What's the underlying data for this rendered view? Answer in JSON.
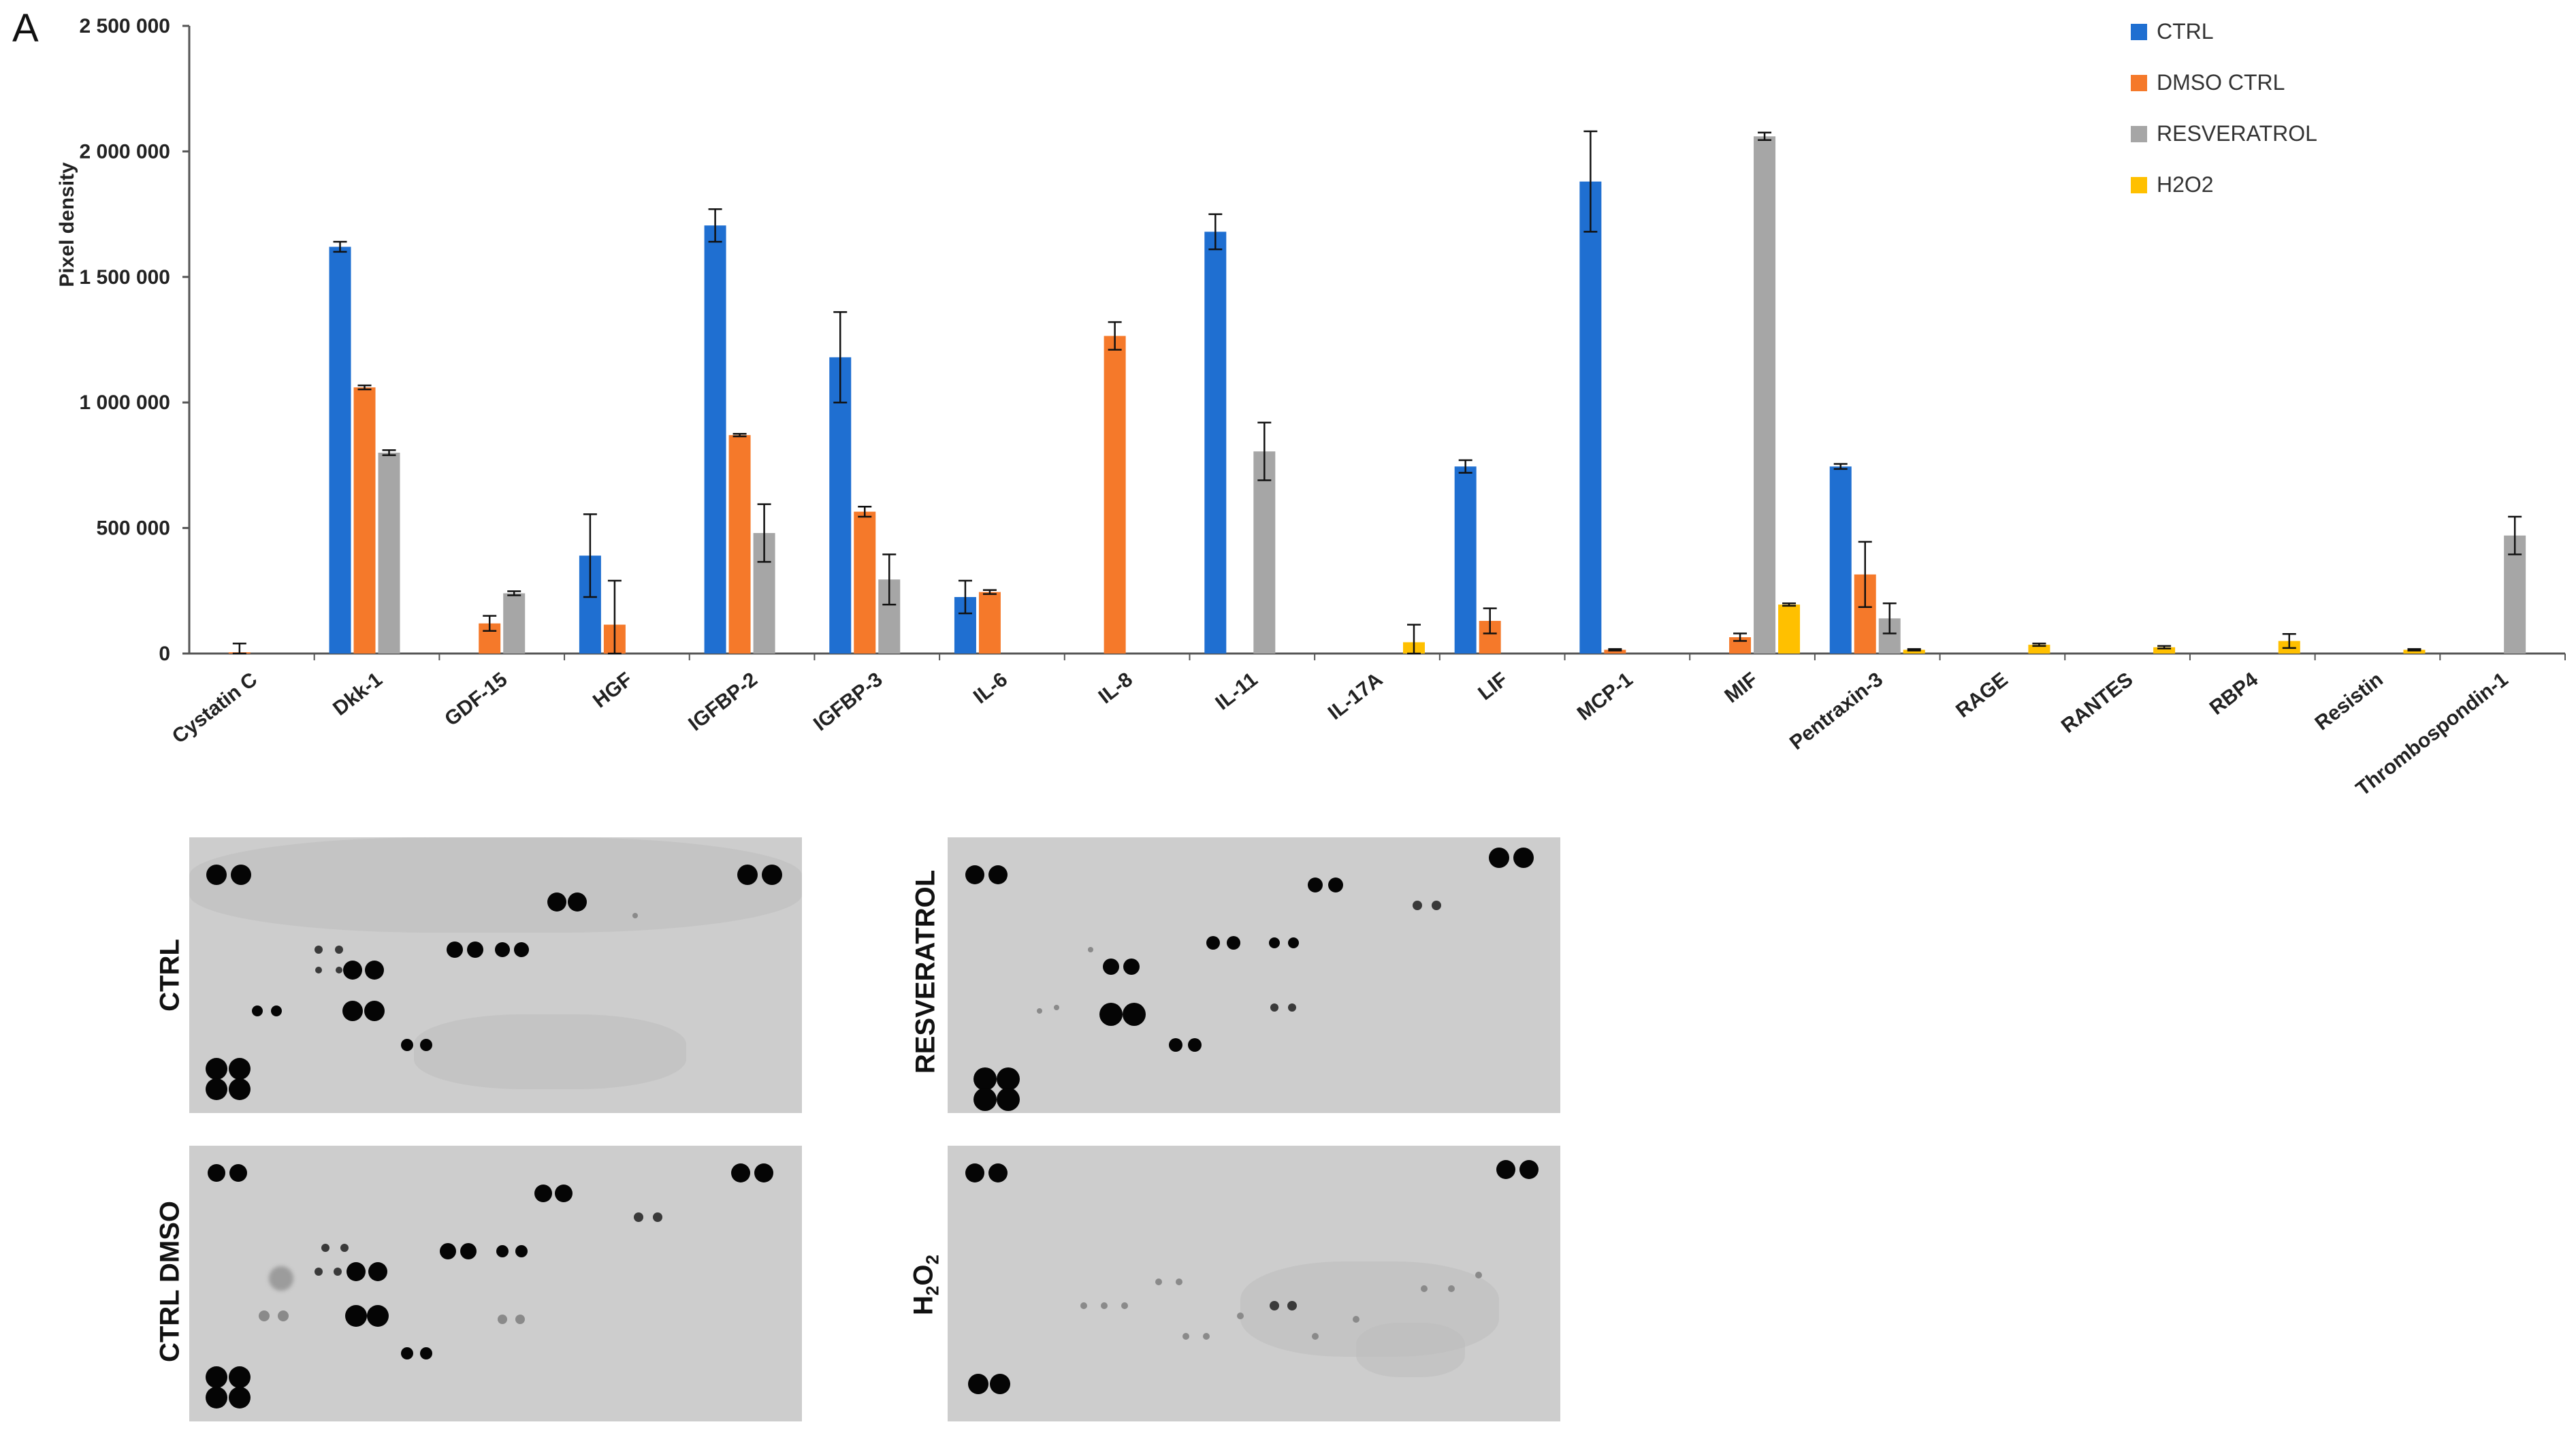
{
  "panel_label": "A",
  "colors": {
    "CTRL": "#1f6fd1",
    "DMSO CTRL": "#f5792a",
    "RESVERATROL": "#a6a6a6",
    "H2O2": "#ffc000"
  },
  "chart_data": {
    "type": "bar",
    "ylabel": "Pixel density",
    "ylim": [
      0,
      2500000
    ],
    "yticks": [
      0,
      500000,
      1000000,
      1500000,
      2000000,
      2500000
    ],
    "ytick_labels": [
      "0",
      "500 000",
      "1 000 000",
      "1 500 000",
      "2 000 000",
      "2 500 000"
    ],
    "grid": false,
    "legend_position": "top-right",
    "categories": [
      "Cystatin C",
      "Dkk-1",
      "GDF-15",
      "HGF",
      "IGFBP-2",
      "IGFBP-3",
      "IL-6",
      "IL-8",
      "IL-11",
      "IL-17A",
      "LIF",
      "MCP-1",
      "MIF",
      "Pentraxin-3",
      "RAGE",
      "RANTES",
      "RBP4",
      "Resistin",
      "Thrombospondin-1"
    ],
    "series": [
      {
        "name": "CTRL",
        "values": [
          0,
          1620000,
          0,
          390000,
          1705000,
          1180000,
          225000,
          0,
          1680000,
          0,
          745000,
          1880000,
          0,
          745000,
          0,
          0,
          0,
          0,
          0
        ],
        "errors": [
          0,
          20000,
          0,
          165000,
          65000,
          180000,
          65000,
          0,
          70000,
          0,
          25000,
          200000,
          0,
          10000,
          0,
          0,
          0,
          0,
          0
        ]
      },
      {
        "name": "DMSO CTRL",
        "values": [
          5000,
          1060000,
          120000,
          115000,
          870000,
          565000,
          245000,
          1265000,
          0,
          0,
          130000,
          15000,
          65000,
          315000,
          0,
          0,
          0,
          0,
          0
        ],
        "errors": [
          35000,
          8000,
          30000,
          175000,
          5000,
          20000,
          8000,
          55000,
          0,
          0,
          50000,
          3000,
          15000,
          130000,
          0,
          0,
          0,
          0,
          0
        ]
      },
      {
        "name": "RESVERATROL",
        "values": [
          0,
          800000,
          240000,
          0,
          480000,
          295000,
          0,
          0,
          805000,
          0,
          0,
          0,
          2060000,
          140000,
          0,
          0,
          0,
          0,
          470000
        ],
        "errors": [
          0,
          10000,
          8000,
          0,
          115000,
          100000,
          0,
          0,
          115000,
          0,
          0,
          0,
          15000,
          60000,
          0,
          0,
          0,
          0,
          75000
        ]
      },
      {
        "name": "H2O2",
        "values": [
          0,
          0,
          0,
          0,
          0,
          0,
          0,
          0,
          0,
          45000,
          0,
          0,
          195000,
          15000,
          35000,
          25000,
          50000,
          15000,
          0
        ],
        "errors": [
          0,
          0,
          0,
          0,
          0,
          0,
          0,
          0,
          0,
          70000,
          0,
          0,
          5000,
          3000,
          5000,
          5000,
          28000,
          3000,
          0
        ]
      }
    ]
  },
  "blots": [
    {
      "label": "CTRL",
      "label_sub": "",
      "label_tail": ""
    },
    {
      "label": "RESVERATROL",
      "label_sub": "",
      "label_tail": ""
    },
    {
      "label": "CTRL DMSO",
      "label_sub": "",
      "label_tail": ""
    },
    {
      "label": "H",
      "label_sub": "2",
      "label_tail": "O",
      "label_sub2": "2"
    }
  ]
}
